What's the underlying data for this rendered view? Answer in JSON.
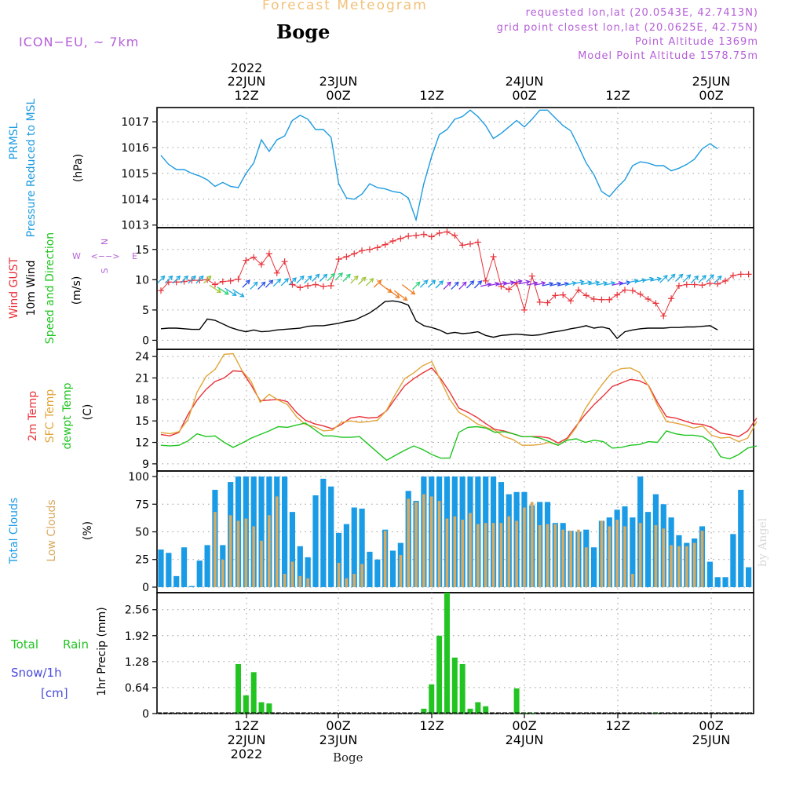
{
  "header": {
    "title": "Forecast Meteogram",
    "location": "Boge",
    "model": "ICON−EU, ~ 7km",
    "requested": "requested lon,lat (20.0543E, 42.7413N)",
    "grid_point": "grid point closest lon,lat (20.0625E, 42.75N)",
    "point_altitude": "Point Altitude 1369m",
    "model_altitude": "Model Point Altitude 1578.75m",
    "credit": "by Angel",
    "bottom_location": "Boge"
  },
  "colors": {
    "pressure": "#1e9be0",
    "gust": "#e8323a",
    "wind": "#000000",
    "temp": "#e8323a",
    "sfc": "#e2a53a",
    "dew": "#1fc41f",
    "total_clouds": "#1a9be6",
    "low_clouds": "#d8aa60",
    "rain": "#22c422",
    "snow": "#4a4ae0",
    "compass": "#b560d8"
  },
  "chart_data": [
    {
      "type": "line",
      "panel": "pressure",
      "title": "PRMSL Pressure Reduced to MSL",
      "ylabel": "(hPa)",
      "label_lines": [
        "PRMSL",
        "Pressure Reduced to MSL"
      ],
      "ylim": [
        1012.9,
        1017.55
      ],
      "yticks": [
        1013,
        1014,
        1015,
        1016,
        1017
      ],
      "series": [
        {
          "name": "PRMSL",
          "color": "#1e9be0",
          "values": [
            1015.7,
            1015.35,
            1015.15,
            1015.15,
            1015.0,
            1014.9,
            1014.75,
            1014.5,
            1014.65,
            1014.5,
            1014.45,
            1015.0,
            1015.4,
            1016.3,
            1015.85,
            1016.3,
            1016.45,
            1017.05,
            1017.25,
            1017.1,
            1016.7,
            1016.7,
            1016.4,
            1014.6,
            1014.05,
            1014.0,
            1014.2,
            1014.6,
            1014.45,
            1014.4,
            1014.3,
            1014.25,
            1014.05,
            1013.2,
            1014.6,
            1015.65,
            1016.5,
            1016.7,
            1017.1,
            1017.2,
            1017.45,
            1017.2,
            1016.85,
            1016.35,
            1016.55,
            1016.8,
            1017.05,
            1016.8,
            1017.1,
            1017.45,
            1017.45,
            1017.15,
            1016.85,
            1016.65,
            1016.05,
            1015.4,
            1014.95,
            1014.3,
            1014.1,
            1014.45,
            1014.75,
            1015.3,
            1015.45,
            1015.4,
            1015.3,
            1015.3,
            1015.1,
            1015.2,
            1015.35,
            1015.55,
            1015.95,
            1016.15,
            1015.95
          ]
        }
      ]
    },
    {
      "type": "line",
      "panel": "wind",
      "title": "Wind GUST, 10m Wind Speed and Direction",
      "ylabel": "(m/s)",
      "label_parts": {
        "gust": "Wind GUST",
        "wind": "10m Wind",
        "dir": "Speed and Direction"
      },
      "compass": {
        "n": "N",
        "s": "S",
        "w": "W",
        "e": "E",
        "arrow": "<−−>"
      },
      "ylim": [
        -1.5,
        18.6
      ],
      "yticks": [
        0,
        5,
        10,
        15
      ],
      "series": [
        {
          "name": "Wind GUST",
          "color": "#e8323a",
          "marker": "plus",
          "values": [
            8.2,
            9.6,
            9.6,
            9.7,
            9.9,
            9.9,
            10.0,
            9.2,
            9.7,
            9.8,
            10.1,
            13.2,
            13.7,
            12.5,
            14.3,
            11.1,
            13.0,
            9.2,
            8.7,
            9.0,
            9.2,
            8.9,
            9.0,
            13.4,
            13.8,
            14.3,
            14.8,
            15.0,
            15.3,
            15.8,
            16.4,
            16.8,
            17.2,
            17.3,
            17.5,
            17.1,
            17.7,
            17.9,
            17.3,
            15.7,
            15.9,
            16.2,
            9.8,
            13.8,
            8.9,
            8.4,
            9.4,
            5.0,
            10.6,
            6.3,
            6.2,
            7.4,
            7.5,
            6.5,
            8.3,
            7.4,
            6.8,
            6.7,
            6.7,
            7.5,
            8.3,
            8.2,
            7.6,
            6.8,
            6.1,
            4.0,
            6.9,
            9.0,
            9.2,
            9.2,
            9.1,
            9.4,
            9.3,
            9.8,
            10.7,
            10.9,
            10.9
          ]
        },
        {
          "name": "10m Wind Speed",
          "color": "#000000",
          "values": [
            1.9,
            2.0,
            2.0,
            1.9,
            1.8,
            1.8,
            3.5,
            3.3,
            2.7,
            2.1,
            1.7,
            1.4,
            1.7,
            1.4,
            1.5,
            1.7,
            1.8,
            1.9,
            2.0,
            2.3,
            2.4,
            2.4,
            2.6,
            2.8,
            3.1,
            3.3,
            3.9,
            4.5,
            5.4,
            6.4,
            6.5,
            6.3,
            5.8,
            3.2,
            2.4,
            2.1,
            1.7,
            1.1,
            1.3,
            1.1,
            1.2,
            1.4,
            0.8,
            0.5,
            0.8,
            0.9,
            1.0,
            0.9,
            0.8,
            0.9,
            1.2,
            1.4,
            1.6,
            1.9,
            2.1,
            2.4,
            2.0,
            2.2,
            1.9,
            0.3,
            1.4,
            1.7,
            1.9,
            2.0,
            2.0,
            2.0,
            2.1,
            2.1,
            2.2,
            2.2,
            2.3,
            2.4,
            1.7
          ]
        },
        {
          "name": "Wind Direction Arrows",
          "color": "multi",
          "values": [
            10,
            10,
            10,
            10,
            10,
            10,
            10,
            8.5,
            8.2,
            8.0,
            7.8,
            9.3,
            9.0,
            9.0,
            9.3,
            9.5,
            9.6,
            9.7,
            10,
            10,
            10.3,
            10.3,
            10.4,
            10.5,
            10.3,
            10.0,
            9.8,
            9.6,
            9.3,
            8.7,
            7.8,
            7.4,
            8.4,
            9.0,
            9.3,
            9.3,
            9.2,
            9.0,
            9.0,
            9.0,
            9.2,
            9.2,
            9.1,
            9.2,
            9.3,
            9.4,
            9.6,
            9.5,
            9.3,
            9.3,
            9.2,
            9.2,
            9.2,
            9.3,
            9.5,
            9.4,
            9.4,
            9.3,
            9.3,
            9.3,
            9.4,
            9.7,
            9.8,
            10.0,
            10.0,
            10.1,
            10.3,
            10.3,
            10.2,
            10.0,
            10.1,
            10.2,
            10.0
          ]
        }
      ]
    },
    {
      "type": "line",
      "panel": "temperature",
      "title": "2m Temp, SFC Temp, dewpt Temp",
      "ylabel": "(C)",
      "label_lines": [
        "2m Temp",
        "SFC Temp",
        "dewpt Temp"
      ],
      "ylim": [
        8,
        25
      ],
      "yticks": [
        9,
        12,
        15,
        18,
        21,
        24
      ],
      "series": [
        {
          "name": "2m Temp",
          "color": "#e8323a",
          "values": [
            13.1,
            12.9,
            13.4,
            15.9,
            17.9,
            19.4,
            20.5,
            21.0,
            22.0,
            21.9,
            20.0,
            17.8,
            17.9,
            18.0,
            17.7,
            16.2,
            15.1,
            14.6,
            14.3,
            13.9,
            14.5,
            15.4,
            15.6,
            15.4,
            15.5,
            16.4,
            18.2,
            19.9,
            20.9,
            21.7,
            22.4,
            20.9,
            19.0,
            16.8,
            16.2,
            15.5,
            14.6,
            13.8,
            13.6,
            13.2,
            12.8,
            12.8,
            12.8,
            12.6,
            11.9,
            12.6,
            14.3,
            15.9,
            17.3,
            18.5,
            19.8,
            20.3,
            20.8,
            20.6,
            20.0,
            17.6,
            15.6,
            15.4,
            15.0,
            14.6,
            14.5,
            14.1,
            13.3,
            13.1,
            12.8,
            13.6,
            15.4
          ]
        },
        {
          "name": "SFC Temp",
          "color": "#e2a53a",
          "values": [
            13.4,
            13.2,
            13.5,
            15.2,
            19.0,
            21.2,
            22.2,
            24.3,
            24.4,
            22.0,
            20.5,
            17.6,
            18.7,
            17.9,
            17.3,
            15.6,
            14.5,
            14.2,
            13.6,
            13.7,
            14.8,
            15.0,
            14.8,
            14.9,
            15.1,
            16.5,
            18.8,
            20.9,
            21.7,
            22.7,
            23.3,
            20.6,
            18.0,
            16.2,
            15.5,
            14.6,
            14.1,
            13.7,
            12.8,
            12.4,
            11.6,
            11.6,
            11.7,
            12.0,
            11.6,
            12.4,
            14.1,
            16.7,
            18.6,
            20.3,
            21.8,
            22.3,
            22.4,
            21.8,
            19.9,
            17.2,
            14.9,
            14.7,
            14.4,
            14.0,
            14.3,
            13.0,
            12.6,
            12.7,
            12.1,
            12.6,
            14.9
          ]
        },
        {
          "name": "dewpt Temp",
          "color": "#1fc41f",
          "values": [
            11.6,
            11.5,
            11.6,
            12.2,
            13.2,
            12.8,
            12.9,
            12.0,
            11.3,
            11.9,
            12.6,
            13.1,
            13.6,
            14.2,
            14.1,
            14.4,
            14.7,
            13.8,
            12.9,
            12.9,
            12.7,
            12.7,
            12.8,
            11.7,
            10.6,
            9.5,
            10.2,
            10.9,
            11.5,
            11.0,
            10.3,
            9.8,
            9.8,
            13.4,
            14.1,
            14.2,
            14.0,
            13.4,
            13.5,
            13.2,
            12.8,
            12.8,
            12.6,
            12.1,
            11.6,
            12.3,
            12.5,
            12.0,
            12.3,
            12.1,
            11.2,
            11.3,
            11.6,
            11.7,
            12.1,
            12.0,
            13.6,
            13.2,
            13.0,
            13.0,
            12.8,
            12.0,
            10.0,
            9.7,
            10.3,
            11.2,
            11.5
          ]
        }
      ]
    },
    {
      "type": "bar",
      "panel": "clouds",
      "title": "Total Clouds, Low Clouds",
      "ylabel": "(%)",
      "label_lines": [
        "Total Clouds",
        "Low Clouds"
      ],
      "ylim": [
        -5,
        105
      ],
      "yticks": [
        0,
        25,
        50,
        75,
        100
      ],
      "series": [
        {
          "name": "Total Clouds",
          "color": "#1a9be6",
          "values": [
            34,
            31,
            10,
            36,
            1,
            24,
            38,
            88,
            38,
            95,
            100,
            100,
            100,
            100,
            100,
            100,
            100,
            68,
            37,
            27,
            83,
            98,
            91,
            49,
            57,
            72,
            71,
            32,
            25,
            52,
            33,
            40,
            87,
            78,
            100,
            100,
            100,
            100,
            100,
            100,
            100,
            100,
            100,
            100,
            95,
            84,
            86,
            86,
            74,
            77,
            77,
            58,
            58,
            51,
            50,
            52,
            36,
            60,
            63,
            70,
            73,
            63,
            100,
            68,
            84,
            75,
            63,
            47,
            40,
            44,
            55,
            23,
            9,
            9,
            48,
            88,
            18
          ]
        },
        {
          "name": "Low Clouds",
          "color": "#d8aa60",
          "values": [
            0,
            0,
            0,
            0,
            0,
            0,
            0,
            68,
            25,
            65,
            60,
            62,
            55,
            42,
            65,
            82,
            12,
            23,
            10,
            8,
            0,
            0,
            0,
            22,
            8,
            12,
            21,
            0,
            0,
            51,
            0,
            29,
            80,
            77,
            84,
            82,
            78,
            62,
            64,
            61,
            67,
            57,
            58,
            58,
            58,
            64,
            60,
            72,
            77,
            56,
            57,
            57,
            52,
            51,
            52,
            36,
            0,
            60,
            55,
            61,
            55,
            12,
            58,
            0,
            56,
            53,
            38,
            37,
            37,
            40,
            51,
            0,
            0,
            0,
            0,
            0,
            0
          ]
        }
      ]
    },
    {
      "type": "bar",
      "panel": "precipitation",
      "title": "1hr Precip (mm)",
      "ylabel": "1hr Precip (mm)",
      "label_parts": {
        "total": "Total",
        "rain": "Rain",
        "snow": "Snow/1h",
        "cm": "[cm]"
      },
      "ylim": [
        0,
        2.98
      ],
      "yticks": [
        0,
        0.64,
        1.28,
        1.92,
        2.56
      ],
      "ytick_labels": [
        "0",
        "0.64",
        "1.28",
        "1.92",
        "2.56"
      ],
      "series": [
        {
          "name": "1hr Precip",
          "color": "#22c422",
          "values": [
            0,
            0,
            0,
            0,
            0,
            0,
            0,
            0,
            0,
            0,
            1.22,
            0.45,
            1.02,
            0.28,
            0.25,
            0,
            0,
            0,
            0,
            0,
            0,
            0,
            0,
            0,
            0,
            0,
            0,
            0,
            0,
            0,
            0,
            0,
            0,
            0,
            0.12,
            0.72,
            1.92,
            2.98,
            1.38,
            1.22,
            0.12,
            0.28,
            0.18,
            0,
            0,
            0,
            0.62,
            0.02,
            0.02,
            0,
            0,
            0,
            0,
            0,
            0,
            0,
            0,
            0,
            0,
            0,
            0,
            0,
            0,
            0,
            0.02,
            0,
            0,
            0,
            0,
            0,
            0,
            0,
            0,
            0,
            0,
            0,
            0
          ]
        }
      ]
    }
  ],
  "time_axis": {
    "top_labels": [
      {
        "year": "2022",
        "date": "22JUN",
        "hour": "12Z"
      },
      {
        "date": "23JUN",
        "hour": "00Z"
      },
      {
        "hour": "12Z"
      },
      {
        "date": "24JUN",
        "hour": "00Z"
      },
      {
        "hour": "12Z"
      },
      {
        "date": "25JUN",
        "hour": "00Z"
      }
    ],
    "bottom_labels": [
      {
        "hour": "12Z",
        "date": "22JUN",
        "year": "2022"
      },
      {
        "hour": "00Z",
        "date": "23JUN"
      },
      {
        "hour": "12Z"
      },
      {
        "hour": "00Z",
        "date": "24JUN"
      },
      {
        "hour": "12Z"
      },
      {
        "hour": "00Z",
        "date": "25JUN"
      }
    ]
  }
}
